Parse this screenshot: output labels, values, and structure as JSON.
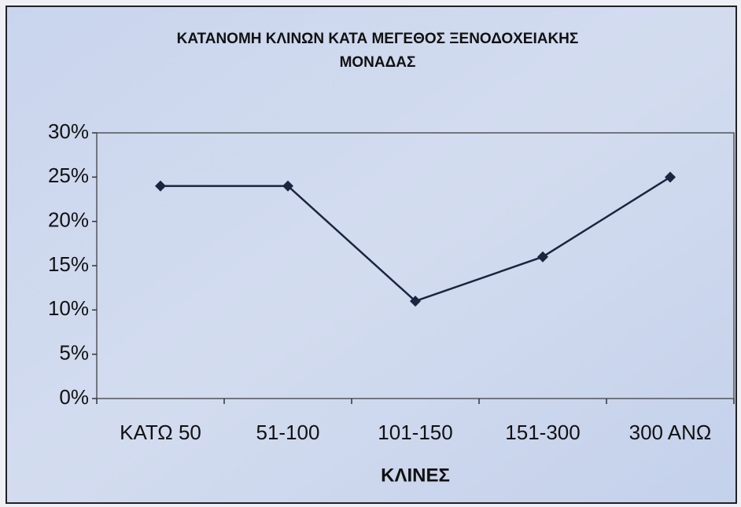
{
  "chart_data": {
    "type": "line",
    "title": [
      "ΚΑΤΑΝΟΜΗ ΚΛΙΝΩΝ ΚΑΤΑ ΜΕΓΕΘΟΣ ΞΕΝΟΔΟΧΕΙΑΚΗΣ",
      "ΜΟΝΑΔΑΣ"
    ],
    "x_label": "ΚΛΙΝΕΣ",
    "categories": [
      "ΚΑΤΩ 50",
      "51-100",
      "101-150",
      "151-300",
      "300 ΑΝΩ"
    ],
    "values": [
      24,
      24,
      11,
      16,
      25
    ],
    "color": "#1c2540",
    "ylim": [
      0,
      30
    ],
    "yticks": [
      {
        "value": 0,
        "label": "0%"
      },
      {
        "value": 5,
        "label": "5%"
      },
      {
        "value": 10,
        "label": "10%"
      },
      {
        "value": 15,
        "label": "15%"
      },
      {
        "value": 20,
        "label": "20%"
      },
      {
        "value": 25,
        "label": "25%"
      },
      {
        "value": 30,
        "label": "30%"
      }
    ],
    "grid": false
  }
}
